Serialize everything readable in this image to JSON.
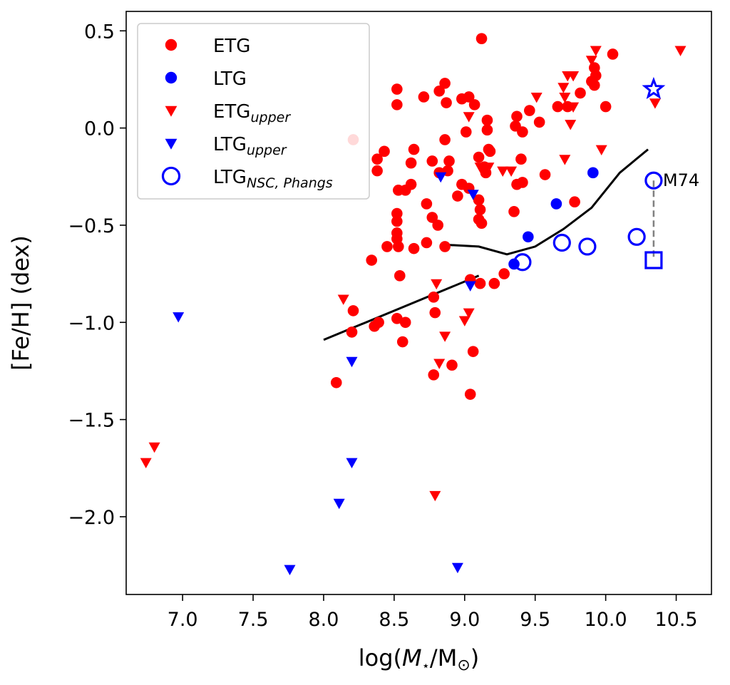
{
  "chart_data": {
    "type": "scatter",
    "title": "",
    "xlabel": "log(M⋆/M⊙)",
    "ylabel": "[Fe/H] (dex)",
    "xlim": [
      6.6,
      10.75
    ],
    "ylim": [
      -2.4,
      0.6
    ],
    "xticks": [
      7.0,
      7.5,
      8.0,
      8.5,
      9.0,
      9.5,
      10.0,
      10.5
    ],
    "yticks": [
      -2.0,
      -1.5,
      -1.0,
      -0.5,
      0.0,
      0.5
    ],
    "xtick_labels": [
      "7.0",
      "7.5",
      "8.0",
      "8.5",
      "9.0",
      "9.5",
      "10.0",
      "10.5"
    ],
    "ytick_labels": [
      "−2.0",
      "−1.5",
      "−1.0",
      "−0.5",
      "0.0",
      "0.5"
    ],
    "grid": false,
    "legend_position": "top-left",
    "legend": [
      {
        "key": "etg",
        "main": "ETG",
        "sub": "",
        "marker": "filled-circle",
        "color": "#ff0000"
      },
      {
        "key": "ltg",
        "main": "LTG",
        "sub": "",
        "marker": "filled-circle",
        "color": "#0000ff"
      },
      {
        "key": "etg_upper",
        "main": "ETG",
        "sub": "upper",
        "marker": "down-triangle",
        "color": "#ff0000"
      },
      {
        "key": "ltg_upper",
        "main": "LTG",
        "sub": "upper",
        "marker": "down-triangle",
        "color": "#0000ff"
      },
      {
        "key": "ltg_nsc",
        "main": "LTG",
        "sub": "NSC, Phangs",
        "marker": "open-circle",
        "color": "#0000ff"
      }
    ],
    "series": {
      "etg": {
        "marker": "filled-circle",
        "color": "#ff0000",
        "points": [
          [
            8.21,
            -0.06
          ],
          [
            9.12,
            0.46
          ],
          [
            8.52,
            0.2
          ],
          [
            8.52,
            0.12
          ],
          [
            8.71,
            0.16
          ],
          [
            8.82,
            0.19
          ],
          [
            8.86,
            0.23
          ],
          [
            8.87,
            0.13
          ],
          [
            8.98,
            0.15
          ],
          [
            9.03,
            0.16
          ],
          [
            9.07,
            0.12
          ],
          [
            9.16,
            0.04
          ],
          [
            9.16,
            -0.01
          ],
          [
            9.37,
            0.06
          ],
          [
            9.36,
            0.01
          ],
          [
            9.41,
            -0.02
          ],
          [
            9.46,
            0.09
          ],
          [
            9.53,
            0.03
          ],
          [
            9.66,
            0.11
          ],
          [
            9.73,
            0.11
          ],
          [
            9.82,
            0.18
          ],
          [
            9.92,
            0.22
          ],
          [
            9.93,
            0.27
          ],
          [
            9.92,
            0.31
          ],
          [
            10.05,
            0.38
          ],
          [
            9.9,
            0.24
          ],
          [
            10.0,
            0.11
          ],
          [
            8.86,
            -0.06
          ],
          [
            9.01,
            -0.02
          ],
          [
            8.38,
            -0.16
          ],
          [
            8.43,
            -0.12
          ],
          [
            8.38,
            -0.22
          ],
          [
            8.64,
            -0.11
          ],
          [
            8.62,
            -0.18
          ],
          [
            8.77,
            -0.17
          ],
          [
            8.89,
            -0.17
          ],
          [
            9.1,
            -0.15
          ],
          [
            9.17,
            -0.11
          ],
          [
            9.18,
            -0.12
          ],
          [
            9.14,
            -0.2
          ],
          [
            9.15,
            -0.23
          ],
          [
            9.4,
            -0.16
          ],
          [
            8.53,
            -0.32
          ],
          [
            8.58,
            -0.32
          ],
          [
            8.62,
            -0.29
          ],
          [
            8.82,
            -0.23
          ],
          [
            8.88,
            -0.22
          ],
          [
            8.95,
            -0.35
          ],
          [
            8.98,
            -0.29
          ],
          [
            9.03,
            -0.31
          ],
          [
            9.1,
            -0.37
          ],
          [
            9.11,
            -0.42
          ],
          [
            9.1,
            -0.47
          ],
          [
            9.12,
            -0.49
          ],
          [
            9.37,
            -0.29
          ],
          [
            9.41,
            -0.28
          ],
          [
            9.57,
            -0.24
          ],
          [
            8.52,
            -0.44
          ],
          [
            8.52,
            -0.48
          ],
          [
            8.52,
            -0.54
          ],
          [
            8.52,
            -0.57
          ],
          [
            8.53,
            -0.61
          ],
          [
            8.73,
            -0.39
          ],
          [
            8.77,
            -0.46
          ],
          [
            8.81,
            -0.5
          ],
          [
            8.86,
            -0.61
          ],
          [
            8.64,
            -0.62
          ],
          [
            8.73,
            -0.59
          ],
          [
            8.45,
            -0.61
          ],
          [
            8.34,
            -0.68
          ],
          [
            9.35,
            -0.43
          ],
          [
            9.78,
            -0.38
          ],
          [
            8.54,
            -0.76
          ],
          [
            8.78,
            -0.87
          ],
          [
            8.79,
            -0.95
          ],
          [
            9.04,
            -0.78
          ],
          [
            9.11,
            -0.8
          ],
          [
            9.21,
            -0.8
          ],
          [
            9.28,
            -0.75
          ],
          [
            8.21,
            -0.94
          ],
          [
            8.36,
            -1.02
          ],
          [
            8.39,
            -1.0
          ],
          [
            8.52,
            -0.98
          ],
          [
            8.56,
            -1.1
          ],
          [
            8.58,
            -1.0
          ],
          [
            8.2,
            -1.05
          ],
          [
            8.78,
            -1.27
          ],
          [
            8.91,
            -1.22
          ],
          [
            9.06,
            -1.15
          ],
          [
            9.04,
            -1.37
          ],
          [
            8.09,
            -1.31
          ]
        ]
      },
      "ltg": {
        "marker": "filled-circle",
        "color": "#0000ff",
        "points": [
          [
            9.91,
            -0.23
          ],
          [
            9.65,
            -0.39
          ],
          [
            9.45,
            -0.56
          ],
          [
            9.35,
            -0.7
          ]
        ]
      },
      "etg_upper": {
        "marker": "down-triangle",
        "color": "#ff0000",
        "points": [
          [
            9.93,
            0.4
          ],
          [
            10.53,
            0.4
          ],
          [
            9.9,
            0.35
          ],
          [
            9.77,
            0.27
          ],
          [
            9.73,
            0.27
          ],
          [
            9.7,
            0.21
          ],
          [
            9.71,
            0.16
          ],
          [
            9.77,
            0.11
          ],
          [
            9.51,
            0.16
          ],
          [
            9.03,
            0.06
          ],
          [
            9.75,
            0.02
          ],
          [
            10.35,
            0.13
          ],
          [
            9.97,
            -0.11
          ],
          [
            9.71,
            -0.16
          ],
          [
            9.11,
            -0.2
          ],
          [
            9.17,
            -0.2
          ],
          [
            9.27,
            -0.22
          ],
          [
            9.33,
            -0.22
          ],
          [
            8.8,
            -0.8
          ],
          [
            8.14,
            -0.88
          ],
          [
            9.03,
            -0.95
          ],
          [
            9.0,
            -0.99
          ],
          [
            8.86,
            -1.07
          ],
          [
            8.82,
            -1.21
          ],
          [
            8.79,
            -1.89
          ],
          [
            6.8,
            -1.64
          ],
          [
            6.74,
            -1.72
          ]
        ]
      },
      "ltg_upper": {
        "marker": "down-triangle",
        "color": "#0000ff",
        "points": [
          [
            8.83,
            -0.25
          ],
          [
            9.06,
            -0.34
          ],
          [
            9.04,
            -0.81
          ],
          [
            6.97,
            -0.97
          ],
          [
            8.2,
            -1.2
          ],
          [
            8.2,
            -1.72
          ],
          [
            8.11,
            -1.93
          ],
          [
            7.76,
            -2.27
          ],
          [
            8.95,
            -2.26
          ]
        ]
      },
      "ltg_nsc": {
        "marker": "open-circle",
        "color": "#0000ff",
        "points": [
          [
            10.34,
            -0.27
          ],
          [
            10.22,
            -0.56
          ],
          [
            9.69,
            -0.59
          ],
          [
            9.87,
            -0.61
          ],
          [
            9.41,
            -0.69
          ]
        ]
      },
      "m74_star": {
        "marker": "open-star",
        "color": "#0000ff",
        "points": [
          [
            10.34,
            0.2
          ]
        ]
      },
      "m74_square": {
        "marker": "open-square",
        "color": "#0000ff",
        "points": [
          [
            10.34,
            -0.68
          ]
        ]
      }
    },
    "lines": [
      {
        "name": "relation-low-mass",
        "color": "#000000",
        "points": [
          [
            8.0,
            -1.09
          ],
          [
            9.1,
            -0.76
          ]
        ]
      },
      {
        "name": "relation-high-mass",
        "color": "#000000",
        "points": [
          [
            8.85,
            -0.6
          ],
          [
            9.1,
            -0.61
          ],
          [
            9.3,
            -0.65
          ],
          [
            9.5,
            -0.61
          ],
          [
            9.7,
            -0.52
          ],
          [
            9.9,
            -0.41
          ],
          [
            10.1,
            -0.23
          ],
          [
            10.3,
            -0.11
          ]
        ]
      }
    ],
    "connector": {
      "name": "m74-connector",
      "color": "#808080",
      "dashed": true,
      "from": [
        10.34,
        -0.27
      ],
      "to": [
        10.34,
        -0.68
      ]
    },
    "annotations": [
      {
        "text": "M74",
        "x": 10.34,
        "y": -0.27
      }
    ]
  }
}
